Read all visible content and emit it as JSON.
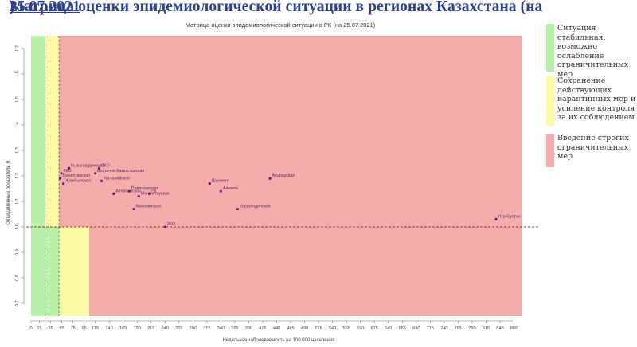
{
  "headline": {
    "text": "Матрица оценки эпидемиологической ситуации в регионах Казахстана (на ",
    "date": "25.07.2021",
    "close": ")"
  },
  "legend": [
    {
      "text": "Ситуация стабильная, возможно ослабление ограничительных мер",
      "color": "#b8f2a8"
    },
    {
      "text": "Сохранение действующих карантинных мер и усиление контроля за их соблюдением",
      "color": "#fbfba6"
    },
    {
      "text": "Введение строгих ограничительных мер",
      "color": "#f7acac"
    }
  ],
  "chart_data": {
    "type": "scatter",
    "title": "Матрица оценки эпидемиологической ситуации в РК (на 25.07.2021)",
    "xlabel": "Недельная заболеваемость на 100 000 населения",
    "ylabel": "Объединенный показатель R",
    "xlim": [
      0,
      880
    ],
    "ylim": [
      0.65,
      1.75
    ],
    "x_ticks": [
      0,
      15,
      35,
      55,
      75,
      95,
      115,
      140,
      165,
      190,
      215,
      240,
      265,
      290,
      315,
      340,
      365,
      390,
      415,
      440,
      465,
      490,
      515,
      540,
      565,
      590,
      615,
      640,
      665,
      690,
      715,
      740,
      765,
      790,
      815,
      840,
      865
    ],
    "y_ticks": [
      0.7,
      0.8,
      0.9,
      1.0,
      1.1,
      1.2,
      1.3,
      1.4,
      1.5,
      1.6,
      1.7
    ],
    "reference_line_y": 1.0,
    "zones": [
      {
        "color": "#b8f2a8",
        "x": [
          0,
          50
        ],
        "y": [
          0.65,
          1.75
        ]
      },
      {
        "color": "#fbfba6",
        "x": [
          50,
          104
        ],
        "y": [
          0.65,
          1.0
        ]
      },
      {
        "color": "#fbfba6",
        "x": [
          25,
          50
        ],
        "y": [
          1.0,
          1.75
        ]
      },
      {
        "color": "#f7acac",
        "x": [
          104,
          880
        ],
        "y": [
          0.65,
          1.0
        ]
      },
      {
        "color": "#f7acac",
        "x": [
          50,
          880
        ],
        "y": [
          1.0,
          1.75
        ]
      }
    ],
    "vlines": [
      25,
      50
    ],
    "points": [
      {
        "label": "Кызылординская",
        "x": 68,
        "y": 1.23
      },
      {
        "label": "ЗКО",
        "x": 54,
        "y": 1.21
      },
      {
        "label": "Туркестанская",
        "x": 52,
        "y": 1.19
      },
      {
        "label": "Жамбылская",
        "x": 58,
        "y": 1.17
      },
      {
        "label": "СКО",
        "x": 122,
        "y": 1.23
      },
      {
        "label": "Восточно-Казахстанская",
        "x": 115,
        "y": 1.21
      },
      {
        "label": "Костанайская",
        "x": 126,
        "y": 1.18
      },
      {
        "label": "Актюбинская",
        "x": 148,
        "y": 1.13
      },
      {
        "label": "Павлодарская",
        "x": 176,
        "y": 1.14
      },
      {
        "label": "Мангистауская",
        "x": 193,
        "y": 1.12
      },
      {
        "label": "РК",
        "x": 212,
        "y": 1.13
      },
      {
        "label": "Акмолинская",
        "x": 184,
        "y": 1.07
      },
      {
        "label": "ЗКО",
        "x": 240,
        "y": 1.0
      },
      {
        "label": "Шымкент",
        "x": 320,
        "y": 1.17
      },
      {
        "label": "Алматы",
        "x": 340,
        "y": 1.14
      },
      {
        "label": "Атырауская",
        "x": 428,
        "y": 1.19
      },
      {
        "label": "Карагандинская",
        "x": 370,
        "y": 1.07
      },
      {
        "label": "Нур-Султан",
        "x": 833,
        "y": 1.03
      }
    ]
  }
}
